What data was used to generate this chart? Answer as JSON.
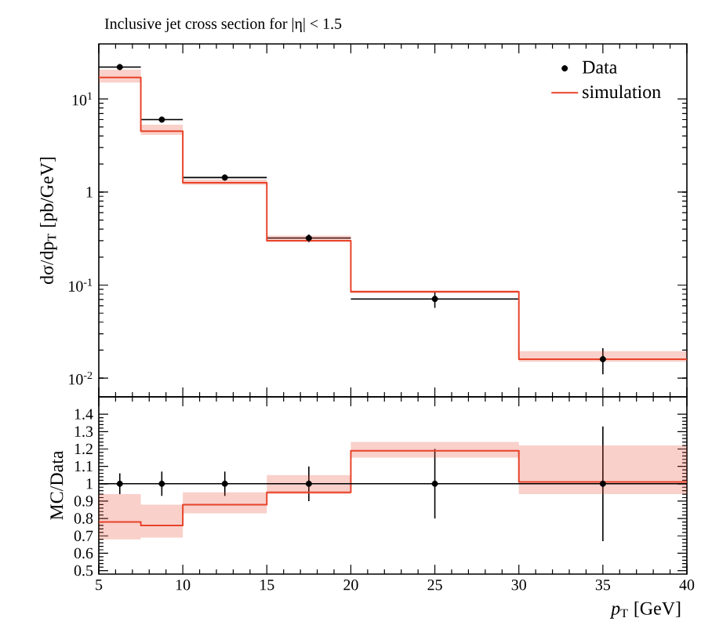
{
  "chart_data": [
    {
      "type": "step",
      "title": "Inclusive jet cross section for |η| < 1.5",
      "ylabel": "dσ/dp$_{T}$ [pb/GeV]",
      "log": "y",
      "legend": "top right",
      "grid": false,
      "tick_labels": "y",
      "xlim": [
        5,
        40
      ],
      "xticks": [
        5,
        10,
        15,
        20,
        25,
        30,
        35,
        40
      ],
      "ylim": [
        0.0063,
        39
      ],
      "yticks": [
        {
          "value": 0.01,
          "label": "10$^{-2}$"
        },
        {
          "value": 0.1,
          "label": "10$^{-1}$"
        },
        {
          "value": 1,
          "label": "1"
        },
        {
          "value": 10,
          "label": "10$^{1}$"
        }
      ],
      "series": [
        {
          "name": "Data",
          "type": "scatter",
          "marker": "circle",
          "color": "#000000",
          "x": [
            6.25,
            8.75,
            12.5,
            17.5,
            25,
            35
          ],
          "values": [
            22,
            6.0,
            1.43,
            0.32,
            0.071,
            0.016
          ],
          "errors": [
            1.3,
            0.4,
            0.1,
            0.03,
            0.014,
            0.005
          ],
          "xerrors": [
            1.25,
            1.25,
            2.5,
            2.5,
            5,
            5
          ]
        },
        {
          "name": "simulation",
          "marker": "none",
          "color": "#e8432a",
          "x": [
            5,
            7.5,
            10,
            15,
            20,
            30,
            40
          ],
          "values": [
            17,
            4.5,
            1.26,
            0.3,
            0.085,
            0.016,
            0.016
          ],
          "lower": [
            15,
            4.1,
            1.19,
            0.3,
            0.082,
            0.015,
            0.015
          ],
          "upper": [
            20.7,
            5.3,
            1.36,
            0.34,
            0.088,
            0.0195,
            0.0195
          ]
        }
      ]
    },
    {
      "type": "step",
      "ylabel": "MC/Data",
      "xlabel": "*p*$_{T}$ [GeV]",
      "grid": false,
      "legend": false,
      "xlim": [
        5,
        40
      ],
      "xticks": [
        5,
        10,
        15,
        20,
        25,
        30,
        35,
        40
      ],
      "ylim": [
        0.48,
        1.5
      ],
      "yticks": [
        0.5,
        0.6,
        0.7,
        0.8,
        0.9,
        1,
        1.1,
        1.2,
        1.3,
        1.4
      ],
      "ref_lines": [
        {
          "axis": "y",
          "value": 1,
          "color": "#000000"
        }
      ],
      "series": [
        {
          "type": "scatter",
          "marker": "circle",
          "color": "#000000",
          "x": [
            6.25,
            8.75,
            12.5,
            17.5,
            25,
            35
          ],
          "values": [
            1,
            1,
            1,
            1,
            1,
            1
          ],
          "errors": [
            0.06,
            0.07,
            0.07,
            0.1,
            0.2,
            0.33
          ]
        },
        {
          "color": "#e8432a",
          "marker": "none",
          "x": [
            5,
            7.5,
            10,
            15,
            20,
            30,
            40
          ],
          "values": [
            0.78,
            0.76,
            0.88,
            0.95,
            1.19,
            1.01,
            1.01
          ],
          "lower": [
            0.68,
            0.69,
            0.83,
            0.94,
            1.15,
            0.94,
            0.94
          ],
          "upper": [
            0.94,
            0.88,
            0.95,
            1.05,
            1.24,
            1.22,
            1.22
          ]
        }
      ]
    }
  ]
}
